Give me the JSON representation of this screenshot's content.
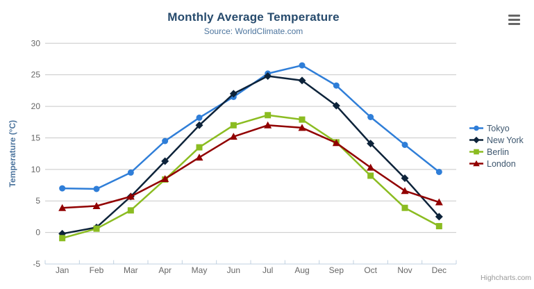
{
  "header": {
    "title": "Monthly Average Temperature",
    "subtitle": "Source: WorldClimate.com"
  },
  "credit_label": "Highcharts.com",
  "menu_icon": "hamburger-icon",
  "colors": {
    "background": "#ffffff",
    "title_text": "#274b6d",
    "subtitle_text": "#4d759e",
    "axis_label": "#666666",
    "axis_line": "#c0d0e0",
    "grid_line": "#c8c8c8",
    "y_axis_title": "#4d759e",
    "legend_text": "#3e576f",
    "credit_text": "#999999",
    "menu_icon_color": "#666666"
  },
  "chart_data": {
    "type": "line",
    "title": "Monthly Average Temperature",
    "subtitle": "Source: WorldClimate.com",
    "categories": [
      "Jan",
      "Feb",
      "Mar",
      "Apr",
      "May",
      "Jun",
      "Jul",
      "Aug",
      "Sep",
      "Oct",
      "Nov",
      "Dec"
    ],
    "xlabel": "",
    "ylabel": "Temperature (°C)",
    "ylim": [
      -5,
      30
    ],
    "ytick_step": 5,
    "yticks": [
      -5,
      0,
      5,
      10,
      15,
      20,
      25,
      30
    ],
    "grid": true,
    "legend_position": "right",
    "series": [
      {
        "name": "Tokyo",
        "color": "#2f7ed8",
        "marker": "circle",
        "values": [
          7.0,
          6.9,
          9.5,
          14.5,
          18.2,
          21.5,
          25.2,
          26.5,
          23.3,
          18.3,
          13.9,
          9.6
        ]
      },
      {
        "name": "New York",
        "color": "#0d233a",
        "marker": "diamond",
        "values": [
          -0.2,
          0.8,
          5.7,
          11.3,
          17.0,
          22.0,
          24.8,
          24.1,
          20.1,
          14.1,
          8.6,
          2.5
        ]
      },
      {
        "name": "Berlin",
        "color": "#8bbc21",
        "marker": "square",
        "values": [
          -0.9,
          0.6,
          3.5,
          8.4,
          13.5,
          17.0,
          18.6,
          17.9,
          14.3,
          9.0,
          3.9,
          1.0
        ]
      },
      {
        "name": "London",
        "color": "#910000",
        "marker": "triangle",
        "values": [
          3.9,
          4.2,
          5.7,
          8.5,
          11.9,
          15.2,
          17.0,
          16.6,
          14.2,
          10.3,
          6.6,
          4.8
        ]
      }
    ]
  }
}
